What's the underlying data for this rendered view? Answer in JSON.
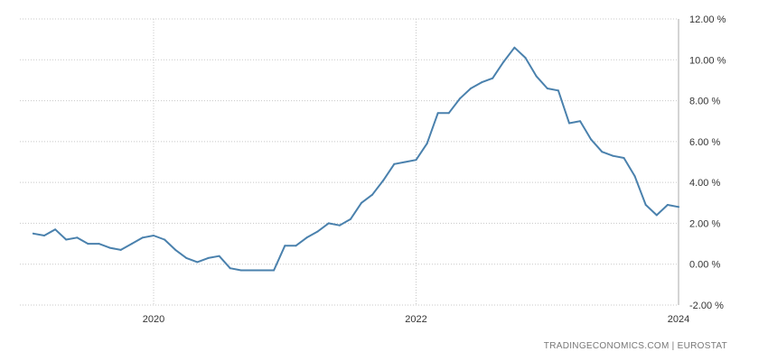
{
  "chart_data": {
    "type": "line",
    "title": "",
    "xlabel": "",
    "ylabel": "",
    "ylim": [
      -2,
      12
    ],
    "y_ticks": [
      12,
      10,
      8,
      6,
      4,
      2,
      0,
      -2
    ],
    "y_tick_labels": [
      "12.00 %",
      "10.00 %",
      "8.00 %",
      "6.00 %",
      "4.00 %",
      "2.00 %",
      "0.00 %",
      "-2.00 %"
    ],
    "x_ticks": [
      2020,
      2022,
      2024
    ],
    "x_tick_labels": [
      "2020",
      "2022",
      "2024"
    ],
    "grid": true,
    "line_color": "#4a81ad",
    "series": [
      {
        "x": [
          "2019-02",
          "2019-03",
          "2019-04",
          "2019-05",
          "2019-06",
          "2019-07",
          "2019-08",
          "2019-09",
          "2019-10",
          "2019-11",
          "2019-12",
          "2020-01",
          "2020-02",
          "2020-03",
          "2020-04",
          "2020-05",
          "2020-06",
          "2020-07",
          "2020-08",
          "2020-09",
          "2020-10",
          "2020-11",
          "2020-12",
          "2021-01",
          "2021-02",
          "2021-03",
          "2021-04",
          "2021-05",
          "2021-06",
          "2021-07",
          "2021-08",
          "2021-09",
          "2021-10",
          "2021-11",
          "2021-12",
          "2022-01",
          "2022-02",
          "2022-03",
          "2022-04",
          "2022-05",
          "2022-06",
          "2022-07",
          "2022-08",
          "2022-09",
          "2022-10",
          "2022-11",
          "2022-12",
          "2023-01",
          "2023-02",
          "2023-03",
          "2023-04",
          "2023-05",
          "2023-06",
          "2023-07",
          "2023-08",
          "2023-09",
          "2023-10",
          "2023-11",
          "2023-12",
          "2024-01"
        ],
        "values": [
          1.5,
          1.4,
          1.7,
          1.2,
          1.3,
          1.0,
          1.0,
          0.8,
          0.7,
          1.0,
          1.3,
          1.4,
          1.2,
          0.7,
          0.3,
          0.1,
          0.3,
          0.4,
          -0.2,
          -0.3,
          -0.3,
          -0.3,
          -0.3,
          0.9,
          0.9,
          1.3,
          1.6,
          2.0,
          1.9,
          2.2,
          3.0,
          3.4,
          4.1,
          4.9,
          5.0,
          5.1,
          5.9,
          7.4,
          7.4,
          8.1,
          8.6,
          8.9,
          9.1,
          9.9,
          10.6,
          10.1,
          9.2,
          8.6,
          8.5,
          6.9,
          7.0,
          6.1,
          5.5,
          5.3,
          5.2,
          4.3,
          2.9,
          2.4,
          2.9,
          2.8
        ]
      }
    ]
  },
  "footer": {
    "source": "TRADINGECONOMICS.COM  |  EUROSTAT"
  }
}
